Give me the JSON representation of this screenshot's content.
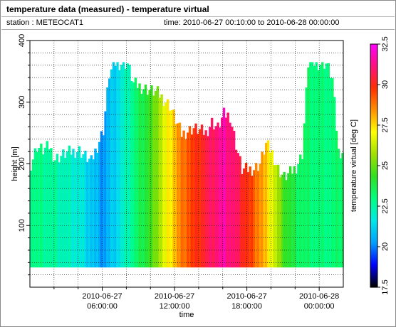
{
  "header": {
    "title": "temperature data (measured) - temperature virtual",
    "station": "station : METEOCAT1",
    "time_range": "time: 2010-06-27 00:10:00 to 2010-06-28 00:00:00"
  },
  "colors": {
    "background": "#ffffff",
    "grid": "#000000",
    "colormap": [
      "#000000",
      "#0000ff",
      "#00a0ff",
      "#00e8e8",
      "#00ff80",
      "#30e020",
      "#a0e000",
      "#ffff00",
      "#ff9000",
      "#ff3000",
      "#ff1080",
      "#ff00ff"
    ]
  },
  "chart_data": {
    "type": "heatmap",
    "xlabel": "time",
    "ylabel": "height [m]",
    "colorbar_label": "temperature virtual [deg C]",
    "x_ticks": [
      {
        "line1": "2010-06-27",
        "line2": "06:00:00",
        "hours": 6
      },
      {
        "line1": "2010-06-27",
        "line2": "12:00:00",
        "hours": 12
      },
      {
        "line1": "2010-06-27",
        "line2": "18:00:00",
        "hours": 18
      },
      {
        "line1": "2010-06-28",
        "line2": "00:00:00",
        "hours": 24
      }
    ],
    "xlim_hours": [
      0.1667,
      24
    ],
    "y_ticks": [
      "100",
      "200",
      "300",
      "400"
    ],
    "ylim": [
      0,
      400
    ],
    "colorbar_ticks": [
      "17.5",
      "20",
      "22.5",
      "25",
      "27.5",
      "30",
      "32.5"
    ],
    "colorbar_range": [
      17.5,
      32.5
    ],
    "column_bottom_m": 32,
    "column_width_hours": 0.1667,
    "profile_top_by_hour": [
      [
        0,
        200
      ],
      [
        0.5,
        228
      ],
      [
        1,
        222
      ],
      [
        1.5,
        228
      ],
      [
        2,
        208
      ],
      [
        3,
        218
      ],
      [
        4,
        222
      ],
      [
        5,
        203
      ],
      [
        6,
        255
      ],
      [
        6.5,
        345
      ],
      [
        7,
        363
      ],
      [
        8,
        363
      ],
      [
        8.5,
        330
      ],
      [
        9.5,
        322
      ],
      [
        10.5,
        315
      ],
      [
        11.5,
        295
      ],
      [
        12.5,
        248
      ],
      [
        13.5,
        258
      ],
      [
        14.5,
        250
      ],
      [
        15,
        268
      ],
      [
        15.5,
        258
      ],
      [
        16,
        280
      ],
      [
        16.5,
        278
      ],
      [
        17,
        232
      ],
      [
        17.5,
        190
      ],
      [
        18.5,
        192
      ],
      [
        19,
        200
      ],
      [
        19.5,
        232
      ],
      [
        20,
        218
      ],
      [
        20.5,
        192
      ],
      [
        21,
        178
      ],
      [
        21.5,
        185
      ],
      [
        22,
        195
      ],
      [
        22.5,
        215
      ],
      [
        23,
        363
      ],
      [
        24.5,
        363
      ],
      [
        25,
        338
      ],
      [
        25.5,
        220
      ]
    ],
    "temperature_by_hour": [
      [
        0,
        23.0
      ],
      [
        2,
        22.5
      ],
      [
        4,
        21.8
      ],
      [
        5,
        21.0
      ],
      [
        6,
        20.2
      ],
      [
        7,
        21.2
      ],
      [
        8,
        22.3
      ],
      [
        9,
        23.5
      ],
      [
        10,
        24.5
      ],
      [
        11,
        26.5
      ],
      [
        12,
        28.0
      ],
      [
        13,
        29.3
      ],
      [
        14,
        30.0
      ],
      [
        15,
        30.8
      ],
      [
        16,
        31.5
      ],
      [
        17,
        30.8
      ],
      [
        18,
        29.8
      ],
      [
        19,
        28.5
      ],
      [
        20,
        26.8
      ],
      [
        21,
        24.5
      ],
      [
        22,
        23.5
      ],
      [
        23,
        23.2
      ],
      [
        24,
        23.0
      ],
      [
        25,
        23.0
      ],
      [
        26,
        23.5
      ]
    ]
  }
}
